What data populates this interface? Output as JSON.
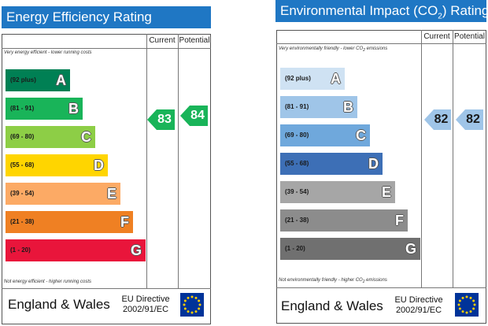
{
  "energy": {
    "title": "Energy Efficiency Rating",
    "current_label": "Current",
    "potential_label": "Potential",
    "top_note": "Very energy efficient - lower running costs",
    "bottom_note": "Not energy efficient - higher running costs",
    "bands": [
      {
        "range": "(92 plus)",
        "letter": "A",
        "color": "#008054"
      },
      {
        "range": "(81 - 91)",
        "letter": "B",
        "color": "#19b459"
      },
      {
        "range": "(69 - 80)",
        "letter": "C",
        "color": "#8dce46"
      },
      {
        "range": "(55 - 68)",
        "letter": "D",
        "color": "#ffd500"
      },
      {
        "range": "(39 - 54)",
        "letter": "E",
        "color": "#fcaa65"
      },
      {
        "range": "(21 - 38)",
        "letter": "F",
        "color": "#ef8023"
      },
      {
        "range": "(1 - 20)",
        "letter": "G",
        "color": "#e9153b"
      }
    ],
    "current_value": "83",
    "potential_value": "84",
    "arrow_color": "#19b459",
    "country": "England & Wales",
    "directive_line1": "EU Directive",
    "directive_line2": "2002/91/EC"
  },
  "environmental": {
    "title_prefix": "Environmental Impact (CO",
    "title_sub": "2",
    "title_suffix": ") Rating",
    "current_label": "Current",
    "potential_label": "Potential",
    "top_note": "Very environmentally friendly - lower CO",
    "top_note_sub": "2",
    "top_note_suffix": " emissions",
    "bottom_note": "Not environmentally friendly - higher CO",
    "bottom_note_sub": "2",
    "bottom_note_suffix": " emissions",
    "bands": [
      {
        "range": "(92 plus)",
        "letter": "A",
        "color": "#cfe2f3"
      },
      {
        "range": "(81 - 91)",
        "letter": "B",
        "color": "#9fc5e8"
      },
      {
        "range": "(69 - 80)",
        "letter": "C",
        "color": "#6fa8dc"
      },
      {
        "range": "(55 - 68)",
        "letter": "D",
        "color": "#3d6fb6"
      },
      {
        "range": "(39 - 54)",
        "letter": "E",
        "color": "#a6a6a6"
      },
      {
        "range": "(21 - 38)",
        "letter": "F",
        "color": "#8c8c8c"
      },
      {
        "range": "(1 - 20)",
        "letter": "G",
        "color": "#707070"
      }
    ],
    "current_value": "82",
    "potential_value": "82",
    "arrow_color": "#9fc5e8",
    "country": "England & Wales",
    "directive_line1": "EU Directive",
    "directive_line2": "2002/91/EC"
  },
  "flag": {
    "background": "#003399",
    "stars": "#ffcc00",
    "icon": "eu-flag-icon"
  }
}
